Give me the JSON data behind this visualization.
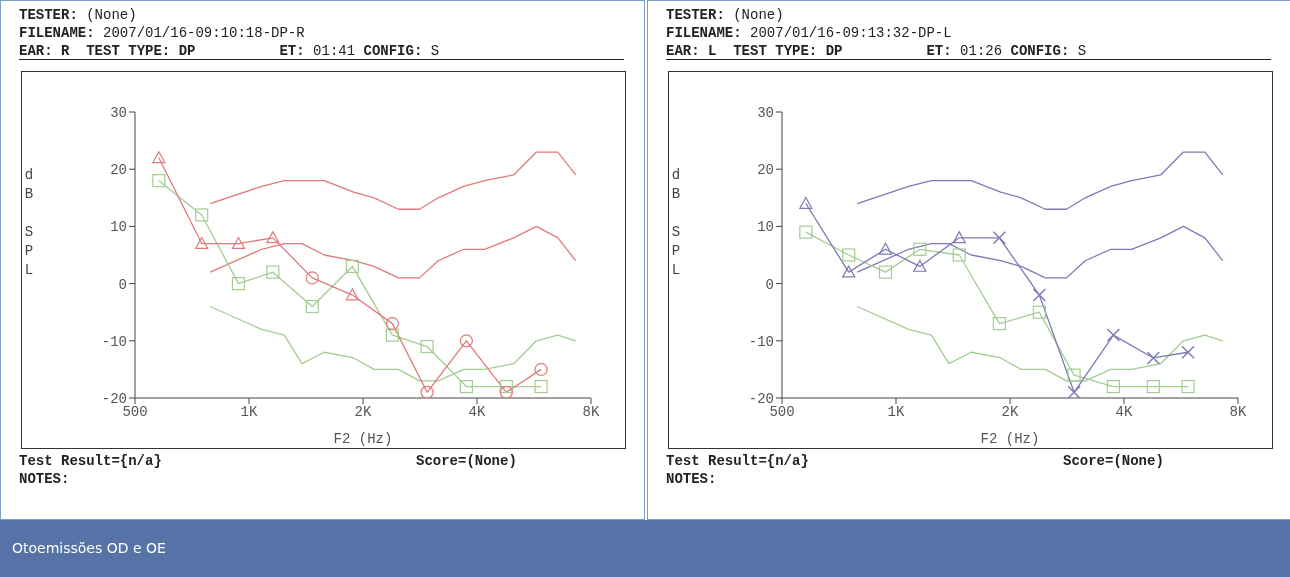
{
  "chart_data": [
    {
      "type": "line",
      "xlabel": "F2 (Hz)",
      "ylabel": "dB SPL",
      "log": "x",
      "xlim": [
        500,
        8000
      ],
      "ylim": [
        -20,
        30
      ],
      "xticks": [
        {
          "value": 500,
          "label": "500"
        },
        {
          "value": 1000,
          "label": "1K"
        },
        {
          "value": 2000,
          "label": "2K"
        },
        {
          "value": 4000,
          "label": "4K"
        },
        {
          "value": 8000,
          "label": "8K"
        }
      ],
      "yticks": [
        -20,
        -10,
        0,
        10,
        20,
        30
      ],
      "annotations": [
        "TESTER: (None)",
        "FILENAME: 2007/01/16-09:10:18-DP-R",
        "EAR: R  TEST TYPE: DP          ET: 01:41 CONFIG: S",
        "Test Result={n/a}",
        "Score=(None)",
        "NOTES:",
        "Otoemissões OD e OE"
      ],
      "series": [
        {
          "color": "#e07a7a",
          "marker": "none",
          "x": [
            790,
            1080,
            1240,
            1380,
            1580,
            1890,
            2140,
            2480,
            2820,
            3160,
            3690,
            4190,
            5000,
            5740,
            6540,
            7290
          ],
          "values": [
            14,
            17,
            18,
            18,
            18,
            16,
            15,
            13,
            13,
            15,
            17,
            18,
            19,
            23,
            23,
            19
          ]
        },
        {
          "color": "#e07a7a",
          "marker": "none",
          "x": [
            790,
            1080,
            1240,
            1380,
            1580,
            1890,
            2140,
            2480,
            2820,
            3160,
            3690,
            4190,
            5000,
            5740,
            6540,
            7290
          ],
          "values": [
            2,
            6,
            7,
            7,
            5,
            4,
            3,
            1,
            1,
            4,
            6,
            6,
            8,
            10,
            8,
            4
          ]
        },
        {
          "color": "#a3cc93",
          "marker": "none",
          "x": [
            790,
            1080,
            1240,
            1380,
            1580,
            1890,
            2140,
            2480,
            2820,
            3160,
            3690,
            4190,
            5000,
            5740,
            6540,
            7290
          ],
          "values": [
            -4,
            -8,
            -9,
            -14,
            -12,
            -13,
            -15,
            -15,
            -17,
            -17,
            -15,
            -15,
            -14,
            -10,
            -9,
            -10
          ]
        },
        {
          "color": "#a3cc93",
          "marker": "square",
          "x": [
            578,
            750,
            938,
            1156,
            1469,
            1875,
            2391,
            2953,
            3750,
            4781,
            5906
          ],
          "values": [
            18,
            12,
            0,
            2,
            -4,
            3,
            -9,
            -11,
            -18,
            -18,
            -18
          ]
        },
        {
          "color": "#e07a7a",
          "marker": [
            "triangle",
            "triangle",
            "triangle",
            "triangle",
            "circle",
            "triangle",
            "circle",
            "circle",
            "circle",
            "circle",
            "circle"
          ],
          "x": [
            578,
            750,
            938,
            1156,
            1469,
            1875,
            2391,
            2953,
            3750,
            4781,
            5906
          ],
          "values": [
            22,
            7,
            7,
            8,
            1,
            -2,
            -7,
            -19,
            -10,
            -19,
            -15
          ]
        }
      ]
    },
    {
      "type": "line",
      "xlabel": "F2 (Hz)",
      "ylabel": "dB SPL",
      "log": "x",
      "xlim": [
        500,
        8000
      ],
      "ylim": [
        -20,
        30
      ],
      "xticks": [
        {
          "value": 500,
          "label": "500"
        },
        {
          "value": 1000,
          "label": "1K"
        },
        {
          "value": 2000,
          "label": "2K"
        },
        {
          "value": 4000,
          "label": "4K"
        },
        {
          "value": 8000,
          "label": "8K"
        }
      ],
      "yticks": [
        -20,
        -10,
        0,
        10,
        20,
        30
      ],
      "annotations": [
        "TESTER: (None)",
        "FILENAME: 2007/01/16-09:13:32-DP-L",
        "EAR: L  TEST TYPE: DP          ET: 01:26 CONFIG: S",
        "Test Result={n/a}",
        "Score=(None)",
        "NOTES:"
      ],
      "series": [
        {
          "color": "#7c7ab4",
          "marker": "none",
          "x": [
            790,
            1080,
            1240,
            1380,
            1580,
            1890,
            2140,
            2480,
            2820,
            3160,
            3690,
            4190,
            5000,
            5740,
            6540,
            7290
          ],
          "values": [
            14,
            17,
            18,
            18,
            18,
            16,
            15,
            13,
            13,
            15,
            17,
            18,
            19,
            23,
            23,
            19
          ]
        },
        {
          "color": "#7c7ab4",
          "marker": "none",
          "x": [
            790,
            1080,
            1240,
            1380,
            1580,
            1890,
            2140,
            2480,
            2820,
            3160,
            3690,
            4190,
            5000,
            5740,
            6540,
            7290
          ],
          "values": [
            2,
            6,
            7,
            7,
            5,
            4,
            3,
            1,
            1,
            4,
            6,
            6,
            8,
            10,
            8,
            4
          ]
        },
        {
          "color": "#a3cc93",
          "marker": "none",
          "x": [
            790,
            1080,
            1240,
            1380,
            1580,
            1890,
            2140,
            2480,
            2820,
            3160,
            3690,
            4190,
            5000,
            5740,
            6540,
            7290
          ],
          "values": [
            -4,
            -8,
            -9,
            -14,
            -12,
            -13,
            -15,
            -15,
            -17,
            -17,
            -15,
            -15,
            -14,
            -10,
            -9,
            -10
          ]
        },
        {
          "color": "#a3cc93",
          "marker": "square",
          "x": [
            578,
            750,
            938,
            1156,
            1469,
            1875,
            2391,
            2953,
            3750,
            4781,
            5906
          ],
          "values": [
            9,
            5,
            2,
            6,
            5,
            -7,
            -5,
            -16,
            -18,
            -18,
            -18
          ]
        },
        {
          "color": "#7c7ab4",
          "marker": [
            "triangle",
            "triangle",
            "triangle",
            "triangle",
            "triangle",
            "cross",
            "cross",
            "cross",
            "cross",
            "cross",
            "cross"
          ],
          "x": [
            578,
            750,
            938,
            1156,
            1469,
            1875,
            2391,
            2953,
            3750,
            4781,
            5906
          ],
          "values": [
            14,
            2,
            6,
            3,
            8,
            8,
            -2,
            -19,
            -9,
            -13,
            -12
          ]
        }
      ]
    }
  ]
}
